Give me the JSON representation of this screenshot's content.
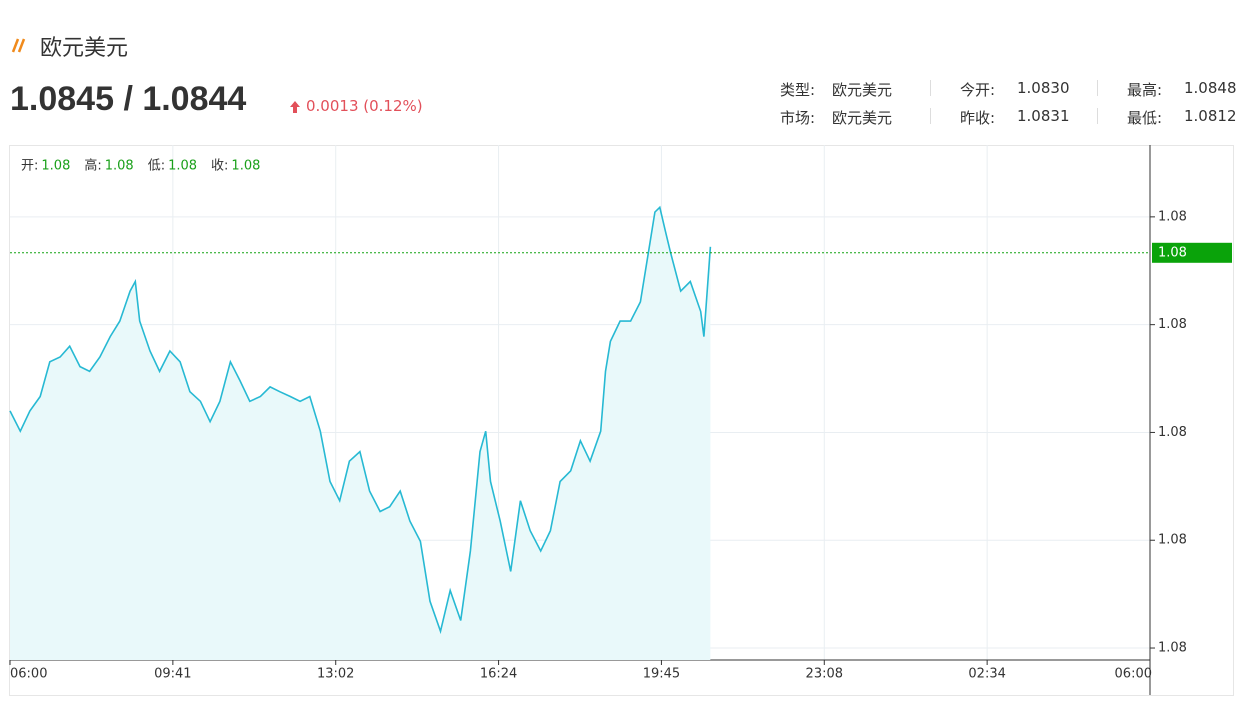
{
  "header": {
    "title": "欧元美元",
    "price": "1.0845 / 1.0844",
    "change": "0.0013 (0.12%)"
  },
  "info": [
    {
      "label": "类型:",
      "value": "欧元美元"
    },
    {
      "label": "今开:",
      "value": "1.0830"
    },
    {
      "label": "最高:",
      "value": "1.0848"
    },
    {
      "label": "市场:",
      "value": "欧元美元"
    },
    {
      "label": "昨收:",
      "value": "1.0831"
    },
    {
      "label": "最低:",
      "value": "1.0812"
    }
  ],
  "chart_data": {
    "type": "area",
    "ohlc": [
      {
        "label": "开:",
        "value": "1.08"
      },
      {
        "label": "高:",
        "value": "1.08"
      },
      {
        "label": "低:",
        "value": "1.08"
      },
      {
        "label": "收:",
        "value": "1.08"
      }
    ],
    "x": [
      0,
      14,
      27,
      41,
      54,
      68,
      81,
      95,
      108,
      122,
      136,
      149,
      163,
      170,
      176,
      190,
      203,
      217,
      230,
      242,
      255,
      267,
      279,
      292,
      304,
      316,
      329,
      341,
      353,
      366,
      378,
      390,
      403,
      415,
      427,
      439,
      452,
      464,
      477,
      489,
      502,
      514,
      527,
      539,
      552,
      564,
      577,
      589,
      601,
      608,
      614,
      626,
      639,
      651,
      663,
      676,
      688,
      700,
      713,
      725,
      737,
      750,
      756,
      762,
      774,
      787,
      799,
      811,
      817,
      823,
      830,
      836,
      849,
      861,
      874,
      878,
      886
    ],
    "series": [
      {
        "color": "#27b9d3",
        "values": [
          1.08308,
          1.08291,
          1.08308,
          1.0832,
          1.08349,
          1.08353,
          1.08362,
          1.08345,
          1.08341,
          1.08353,
          1.0837,
          1.08383,
          1.08408,
          1.08416,
          1.08383,
          1.08358,
          1.08341,
          1.08358,
          1.08349,
          1.08324,
          1.08316,
          1.08299,
          1.08316,
          1.08349,
          1.08333,
          1.08316,
          1.0832,
          1.08328,
          1.08324,
          1.0832,
          1.08316,
          1.0832,
          1.08291,
          1.08249,
          1.08233,
          1.08266,
          1.08274,
          1.08241,
          1.08224,
          1.08228,
          1.08241,
          1.08216,
          1.08199,
          1.08149,
          1.08124,
          1.08158,
          1.08133,
          1.08191,
          1.08274,
          1.08291,
          1.08249,
          1.08216,
          1.08174,
          1.08233,
          1.08208,
          1.08191,
          1.08208,
          1.08249,
          1.08258,
          1.08283,
          1.08266,
          1.08291,
          1.08341,
          1.08366,
          1.08383,
          1.08383,
          1.08399,
          1.08449,
          1.08474,
          1.08478,
          1.08458,
          1.08441,
          1.08408,
          1.08416,
          1.08391,
          1.0837,
          1.08445
        ]
      }
    ],
    "xlim": [
      0,
      1440
    ],
    "xticks": [
      {
        "value": 0,
        "label": "06:00"
      },
      {
        "value": 221,
        "label": "09:41"
      },
      {
        "value": 422,
        "label": "13:02"
      },
      {
        "value": 624,
        "label": "16:24"
      },
      {
        "value": 825,
        "label": "19:45"
      },
      {
        "value": 1028,
        "label": "23:08"
      },
      {
        "value": 1234,
        "label": "02:34"
      },
      {
        "value": 1440,
        "label": "06:00"
      }
    ],
    "ylim": [
      1.081,
      1.0853
    ],
    "yticks": [
      {
        "value": 1.0847,
        "label": "1.08"
      },
      {
        "value": 1.0838,
        "label": "1.08"
      },
      {
        "value": 1.0829,
        "label": "1.08"
      },
      {
        "value": 1.082,
        "label": "1.08"
      },
      {
        "value": 1.0811,
        "label": "1.08"
      }
    ],
    "last": {
      "value": 1.0844,
      "label": "1.08"
    },
    "grid": true
  }
}
